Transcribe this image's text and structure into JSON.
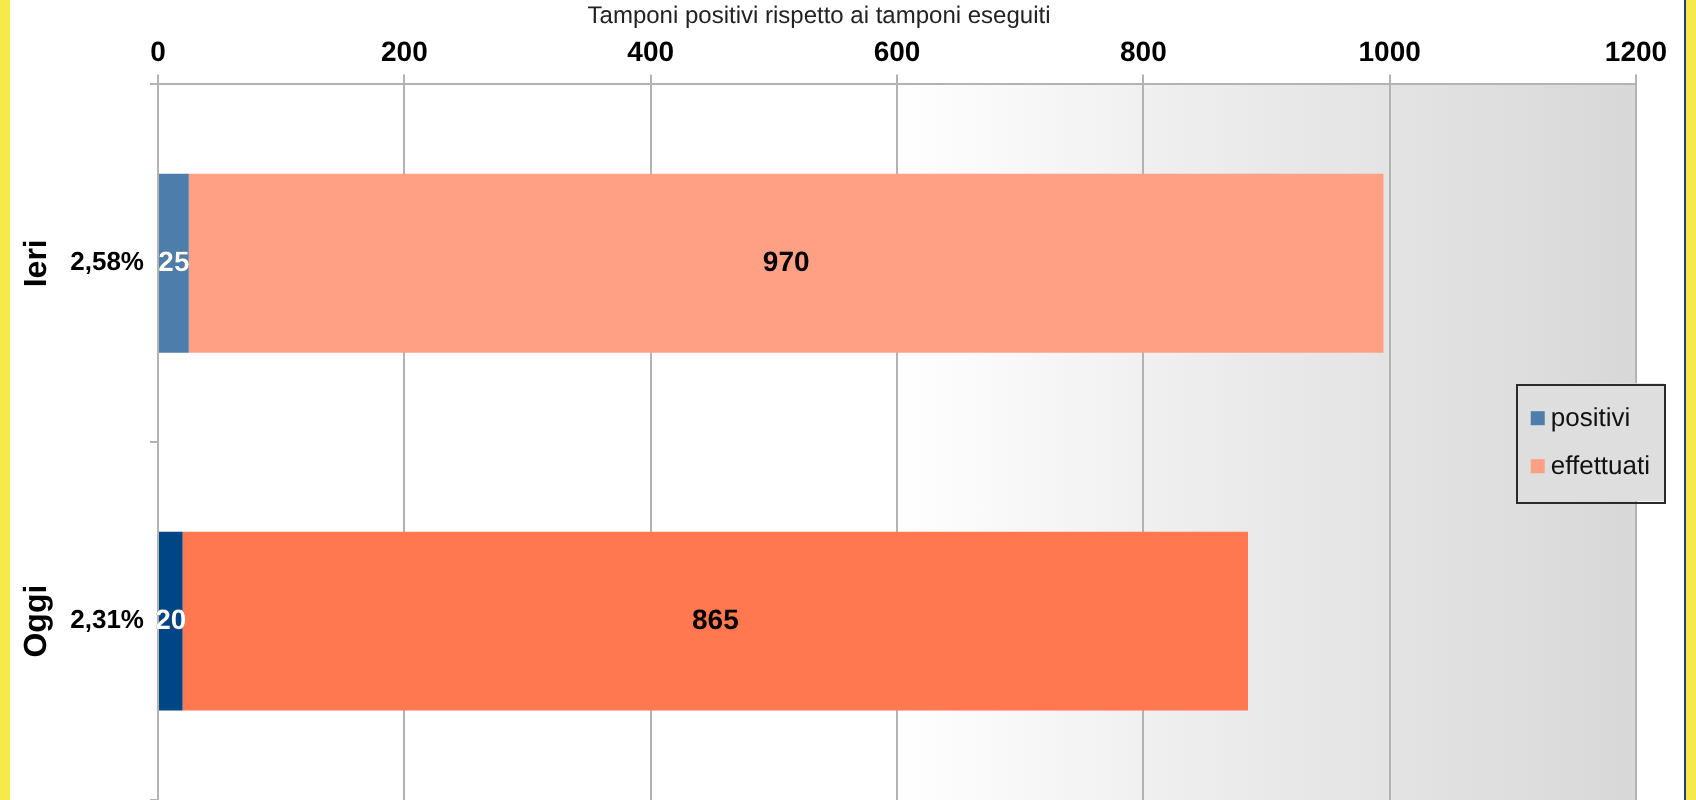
{
  "chart_data": {
    "type": "bar",
    "orientation": "horizontal",
    "stacked": true,
    "title": "Tamponi positivi rispetto ai tamponi eseguiti",
    "categories": [
      "Ieri",
      "Oggi"
    ],
    "series": [
      {
        "name": "positivi",
        "color": "#4d7dab",
        "colors": [
          "#4d7dab",
          "#004586"
        ],
        "values": [
          25,
          20
        ]
      },
      {
        "name": "effettuati",
        "color": "#ffa085",
        "colors": [
          "#ffa085",
          "#ff7850"
        ],
        "values": [
          970,
          865
        ]
      }
    ],
    "xlim": [
      0,
      1200
    ],
    "xticks": [
      0,
      200,
      400,
      600,
      800,
      1000,
      1200
    ],
    "grid": "x",
    "legend": "right",
    "data_labels": true,
    "annotations": [
      "2,58%",
      "2,31%"
    ]
  }
}
